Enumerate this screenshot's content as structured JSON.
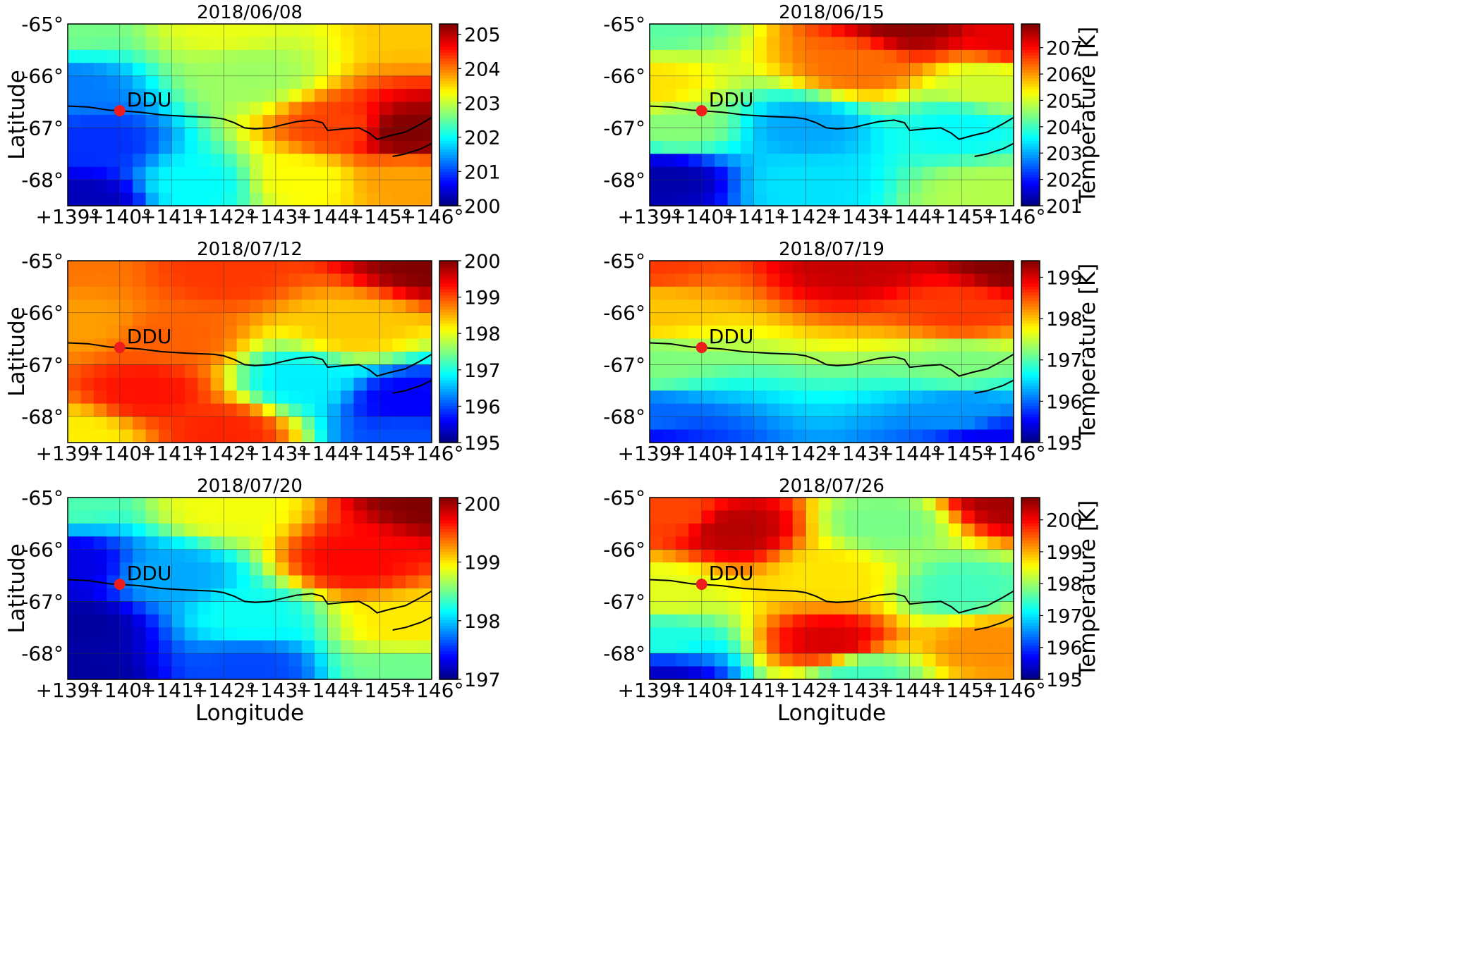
{
  "station": {
    "name": "DDU",
    "lon": 140.0,
    "lat": -66.67,
    "color": "#ee1c1c"
  },
  "axes": {
    "xlabel": "Longitude",
    "ylabel": "Latitude",
    "xticks": [
      "+139°",
      "+140°",
      "+141°",
      "+142°",
      "+143°",
      "+144°",
      "+145°",
      "+146°"
    ],
    "yticks": [
      "-65°",
      "-66°",
      "-67°",
      "-68°"
    ],
    "xlim": [
      139,
      146
    ],
    "ylim": [
      -68.5,
      -65
    ],
    "grid": true
  },
  "colorbar_label": "Temperature [K]",
  "colormap": "jet",
  "chart_data": [
    {
      "type": "heatmap",
      "title": "2018/06/08",
      "clim": [
        200,
        205.3
      ],
      "colorbar_ticks": [
        "200",
        "201",
        "202",
        "203",
        "204",
        "205"
      ],
      "colorbar_tick_values": [
        200,
        201,
        202,
        203,
        204,
        205
      ],
      "show_colorbar_label": false,
      "field": [
        {
          "lon": 139,
          "lat": -65,
          "value": 202.6
        },
        {
          "lon": 142,
          "lat": -65,
          "value": 203.2
        },
        {
          "lon": 146,
          "lat": -65,
          "value": 203.6
        },
        {
          "lon": 139,
          "lat": -66.3,
          "value": 201.3
        },
        {
          "lon": 142.5,
          "lat": -66.0,
          "value": 202.8
        },
        {
          "lon": 145.5,
          "lat": -67.1,
          "value": 205.3
        },
        {
          "lon": 144.2,
          "lat": -67.0,
          "value": 204.3
        },
        {
          "lon": 139.5,
          "lat": -67.3,
          "value": 200.9
        },
        {
          "lon": 139.3,
          "lat": -68.4,
          "value": 200.3
        },
        {
          "lon": 141.5,
          "lat": -68.1,
          "value": 202.0
        },
        {
          "lon": 143.5,
          "lat": -68.0,
          "value": 203.3
        },
        {
          "lon": 145.5,
          "lat": -68.0,
          "value": 203.8
        }
      ]
    },
    {
      "type": "heatmap",
      "title": "2018/06/15",
      "clim": [
        201,
        207.9
      ],
      "colorbar_ticks": [
        "201",
        "202",
        "203",
        "204",
        "205",
        "206",
        "207"
      ],
      "colorbar_tick_values": [
        201,
        202,
        203,
        204,
        205,
        206,
        207
      ],
      "show_colorbar_label": true,
      "field": [
        {
          "lon": 139,
          "lat": -65,
          "value": 204.2
        },
        {
          "lon": 144,
          "lat": -65,
          "value": 207.8
        },
        {
          "lon": 146,
          "lat": -65.2,
          "value": 207.2
        },
        {
          "lon": 139,
          "lat": -66.2,
          "value": 205.5
        },
        {
          "lon": 143,
          "lat": -65.8,
          "value": 206.3
        },
        {
          "lon": 145.5,
          "lat": -66.2,
          "value": 205.0
        },
        {
          "lon": 139.5,
          "lat": -67.0,
          "value": 204.5
        },
        {
          "lon": 142,
          "lat": -67.0,
          "value": 203.0
        },
        {
          "lon": 145,
          "lat": -67.0,
          "value": 203.6
        },
        {
          "lon": 139.3,
          "lat": -68.0,
          "value": 201.3
        },
        {
          "lon": 142,
          "lat": -68.1,
          "value": 203.4
        },
        {
          "lon": 145.5,
          "lat": -68.3,
          "value": 204.8
        }
      ]
    },
    {
      "type": "heatmap",
      "title": "2018/07/12",
      "clim": [
        195,
        200
      ],
      "colorbar_ticks": [
        "195",
        "196",
        "197",
        "198",
        "199",
        "200"
      ],
      "colorbar_tick_values": [
        195,
        196,
        197,
        198,
        199,
        200
      ],
      "show_colorbar_label": false,
      "field": [
        {
          "lon": 139,
          "lat": -65,
          "value": 198.8
        },
        {
          "lon": 142,
          "lat": -65.2,
          "value": 199.1
        },
        {
          "lon": 146,
          "lat": -65,
          "value": 200.0
        },
        {
          "lon": 139.2,
          "lat": -66.2,
          "value": 198.6
        },
        {
          "lon": 141.0,
          "lat": -66.5,
          "value": 198.9
        },
        {
          "lon": 144.5,
          "lat": -66.3,
          "value": 198.4
        },
        {
          "lon": 140.5,
          "lat": -67.5,
          "value": 199.3
        },
        {
          "lon": 143.5,
          "lat": -67.3,
          "value": 196.8
        },
        {
          "lon": 145.5,
          "lat": -67.7,
          "value": 195.6
        },
        {
          "lon": 139.2,
          "lat": -68.4,
          "value": 198.2
        },
        {
          "lon": 142,
          "lat": -68.3,
          "value": 199.2
        },
        {
          "lon": 145.5,
          "lat": -68.4,
          "value": 196.0
        }
      ]
    },
    {
      "type": "heatmap",
      "title": "2018/07/19",
      "clim": [
        195,
        199.4
      ],
      "colorbar_ticks": [
        "195",
        "196",
        "197",
        "198",
        "199"
      ],
      "colorbar_tick_values": [
        195,
        196,
        197,
        198,
        199
      ],
      "show_colorbar_label": true,
      "field": [
        {
          "lon": 139,
          "lat": -65,
          "value": 198.6
        },
        {
          "lon": 143,
          "lat": -65,
          "value": 199.1
        },
        {
          "lon": 146,
          "lat": -65,
          "value": 199.4
        },
        {
          "lon": 139,
          "lat": -66.0,
          "value": 198.0
        },
        {
          "lon": 145,
          "lat": -66.0,
          "value": 198.6
        },
        {
          "lon": 139,
          "lat": -67.0,
          "value": 197.2
        },
        {
          "lon": 145,
          "lat": -67.0,
          "value": 197.2
        },
        {
          "lon": 139,
          "lat": -68.0,
          "value": 196.0
        },
        {
          "lon": 145,
          "lat": -67.9,
          "value": 196.2
        },
        {
          "lon": 139,
          "lat": -68.5,
          "value": 195.6
        },
        {
          "lon": 145.5,
          "lat": -68.5,
          "value": 195.5
        }
      ]
    },
    {
      "type": "heatmap",
      "title": "2018/07/20",
      "clim": [
        197,
        200.1
      ],
      "colorbar_ticks": [
        "197",
        "198",
        "199",
        "200"
      ],
      "colorbar_tick_values": [
        197,
        198,
        199,
        200
      ],
      "show_colorbar_label": false,
      "field": [
        {
          "lon": 139,
          "lat": -65,
          "value": 198.4
        },
        {
          "lon": 142,
          "lat": -65.2,
          "value": 198.9
        },
        {
          "lon": 146,
          "lat": -65,
          "value": 200.1
        },
        {
          "lon": 139,
          "lat": -66.3,
          "value": 197.3
        },
        {
          "lon": 141,
          "lat": -66.5,
          "value": 197.9
        },
        {
          "lon": 144.5,
          "lat": -66.2,
          "value": 199.7
        },
        {
          "lon": 139.2,
          "lat": -67.5,
          "value": 197.1
        },
        {
          "lon": 142.5,
          "lat": -67.3,
          "value": 198.2
        },
        {
          "lon": 145.5,
          "lat": -67.5,
          "value": 199.0
        },
        {
          "lon": 139.2,
          "lat": -68.4,
          "value": 197.1
        },
        {
          "lon": 142.5,
          "lat": -68.3,
          "value": 197.6
        },
        {
          "lon": 145.5,
          "lat": -68.3,
          "value": 198.5
        }
      ]
    },
    {
      "type": "heatmap",
      "title": "2018/07/26",
      "clim": [
        195,
        200.7
      ],
      "colorbar_ticks": [
        "195",
        "196",
        "197",
        "198",
        "199",
        "200"
      ],
      "colorbar_tick_values": [
        195,
        196,
        197,
        198,
        199,
        200
      ],
      "show_colorbar_label": true,
      "field": [
        {
          "lon": 139.5,
          "lat": -65.3,
          "value": 199.6
        },
        {
          "lon": 140.6,
          "lat": -65.6,
          "value": 200.4
        },
        {
          "lon": 143.5,
          "lat": -65.5,
          "value": 197.8
        },
        {
          "lon": 146,
          "lat": -65,
          "value": 200.5
        },
        {
          "lon": 139.3,
          "lat": -66.8,
          "value": 198.4
        },
        {
          "lon": 142.5,
          "lat": -66.5,
          "value": 198.7
        },
        {
          "lon": 145,
          "lat": -66.8,
          "value": 197.5
        },
        {
          "lon": 139.2,
          "lat": -67.8,
          "value": 197.3
        },
        {
          "lon": 142.5,
          "lat": -67.8,
          "value": 200.2
        },
        {
          "lon": 145.5,
          "lat": -67.8,
          "value": 199.2
        },
        {
          "lon": 139.2,
          "lat": -68.4,
          "value": 195.4
        },
        {
          "lon": 143,
          "lat": -68.4,
          "value": 197.5
        }
      ]
    }
  ]
}
